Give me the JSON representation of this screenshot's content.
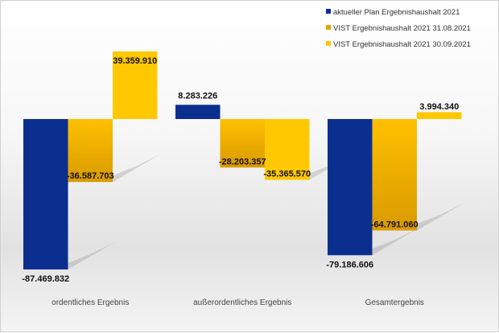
{
  "chart_data": {
    "type": "bar",
    "categories": [
      "ordentliches Ergebnis",
      "außerordentliches Ergebnis",
      "Gesamtergebnis"
    ],
    "series": [
      {
        "name": "aktueller Plan Ergebnishaushalt 2021",
        "color": "#0b2f8e",
        "values": [
          -87469832,
          8283226,
          -79186606
        ],
        "labels": [
          "-87.469.832",
          "8.283.226",
          "-79.186.606"
        ]
      },
      {
        "name": "VIST Ergebnishaushalt 2021 31.08.2021",
        "color": "#e8a900",
        "values": [
          -36587703,
          -28203357,
          -64791060
        ],
        "labels": [
          "-36.587.703",
          "-28.203.357",
          "-64.791.060"
        ]
      },
      {
        "name": "VIST Ergebnishaushalt 2021 30.09.2021",
        "color": "#ffc800",
        "values": [
          39359910,
          -35365570,
          3994340
        ],
        "labels": [
          "39.359.910",
          "-35.365.570",
          "3.994.340"
        ]
      }
    ],
    "legend_position": "top-right",
    "grid": false
  }
}
